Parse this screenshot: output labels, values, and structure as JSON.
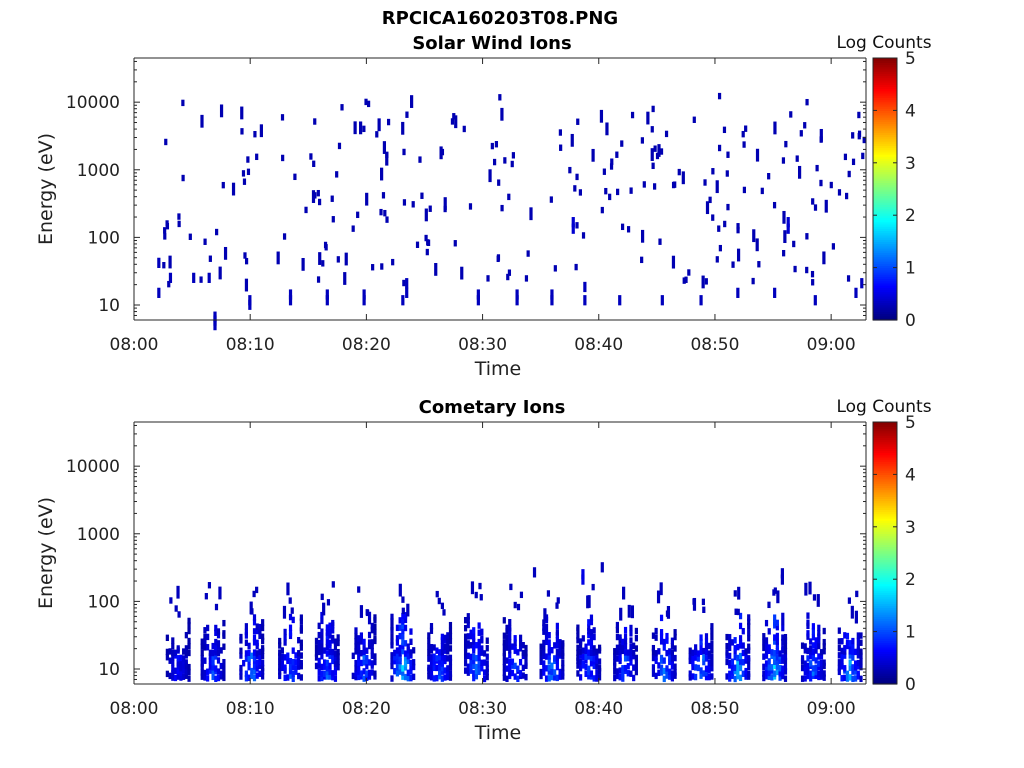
{
  "figure": {
    "title": "RPCICA160203T08.PNG"
  },
  "colormap": [
    "#00007f",
    "#0000ff",
    "#007fff",
    "#00ffff",
    "#7fff7f",
    "#ffff00",
    "#ff7f00",
    "#ff0000",
    "#7f0000"
  ],
  "chart_data": [
    {
      "type": "heatmap",
      "title": "Solar Wind Ions",
      "xlabel": "Time",
      "ylabel": "Energy (eV)",
      "xlim": [
        "08:00",
        "09:03"
      ],
      "ylim": [
        6,
        45000
      ],
      "yscale": "log",
      "x_ticks": [
        "08:00",
        "08:10",
        "08:20",
        "08:30",
        "08:40",
        "08:50",
        "09:00"
      ],
      "y_ticks": [
        10,
        100,
        1000,
        10000
      ],
      "y_ticklabels": [
        "10",
        "100",
        "1000",
        "10000"
      ],
      "colorbar": {
        "label": "Log Counts",
        "range": [
          0,
          5
        ],
        "ticks": [
          "0",
          "1",
          "2",
          "3",
          "4",
          "5"
        ]
      },
      "noise_points": 260,
      "cells": [
        {
          "t": "08:06:50",
          "e": 6,
          "c": 0.3
        },
        {
          "t": "08:06:50",
          "e": 7,
          "c": 0.3
        },
        {
          "t": "08:06:50",
          "e": 8,
          "c": 0.3
        },
        {
          "t": "08:03:00",
          "e": 30,
          "c": 0.3
        },
        {
          "t": "08:05:00",
          "e": 30,
          "c": 0.3
        },
        {
          "t": "08:06:20",
          "e": 30,
          "c": 0.3
        },
        {
          "t": "08:02:00",
          "e": 18,
          "c": 0.3
        },
        {
          "t": "08:02:00",
          "e": 50,
          "c": 0.3
        },
        {
          "t": "08:09:50",
          "e": 14,
          "c": 0.3
        },
        {
          "t": "08:09:50",
          "e": 12,
          "c": 0.3
        },
        {
          "t": "08:13:20",
          "e": 14,
          "c": 0.3
        },
        {
          "t": "08:13:20",
          "e": 17,
          "c": 0.3
        },
        {
          "t": "08:16:30",
          "e": 14,
          "c": 0.3
        },
        {
          "t": "08:16:30",
          "e": 17,
          "c": 0.3
        },
        {
          "t": "08:19:40",
          "e": 14,
          "c": 0.3
        },
        {
          "t": "08:19:40",
          "e": 17,
          "c": 0.3
        },
        {
          "t": "08:23:00",
          "e": 14,
          "c": 0.3
        },
        {
          "t": "08:23:20",
          "e": 18,
          "c": 0.3
        },
        {
          "t": "08:23:20",
          "e": 25,
          "c": 0.3
        },
        {
          "t": "08:29:30",
          "e": 14,
          "c": 0.3
        },
        {
          "t": "08:29:30",
          "e": 17,
          "c": 0.3
        },
        {
          "t": "08:32:50",
          "e": 14,
          "c": 0.3
        },
        {
          "t": "08:32:50",
          "e": 17,
          "c": 0.3
        },
        {
          "t": "08:35:50",
          "e": 14,
          "c": 0.3
        },
        {
          "t": "08:35:50",
          "e": 17,
          "c": 0.3
        },
        {
          "t": "08:38:40",
          "e": 14,
          "c": 0.3
        },
        {
          "t": "08:38:40",
          "e": 22,
          "c": 0.3
        },
        {
          "t": "08:41:40",
          "e": 14,
          "c": 0.3
        },
        {
          "t": "08:45:20",
          "e": 14,
          "c": 0.3
        },
        {
          "t": "08:48:40",
          "e": 14,
          "c": 0.3
        },
        {
          "t": "08:51:50",
          "e": 18,
          "c": 0.3
        },
        {
          "t": "08:55:00",
          "e": 18,
          "c": 0.3
        },
        {
          "t": "08:58:30",
          "e": 14,
          "c": 0.3
        },
        {
          "t": "09:02:00",
          "e": 18,
          "c": 0.3
        },
        {
          "t": "09:02:30",
          "e": 25,
          "c": 0.3
        },
        {
          "t": "08:37:40",
          "e": 160,
          "c": 0.4
        },
        {
          "t": "08:37:40",
          "e": 200,
          "c": 0.4
        },
        {
          "t": "08:56:10",
          "e": 160,
          "c": 0.4
        },
        {
          "t": "08:56:10",
          "e": 200,
          "c": 0.4
        }
      ]
    },
    {
      "type": "heatmap",
      "title": "Cometary Ions",
      "xlabel": "Time",
      "ylabel": "Energy (eV)",
      "xlim": [
        "08:00",
        "09:03"
      ],
      "ylim": [
        6,
        45000
      ],
      "yscale": "log",
      "x_ticks": [
        "08:00",
        "08:10",
        "08:20",
        "08:30",
        "08:40",
        "08:50",
        "09:00"
      ],
      "y_ticks": [
        10,
        100,
        1000,
        10000
      ],
      "y_ticklabels": [
        "10",
        "100",
        "1000",
        "10000"
      ],
      "colorbar": {
        "label": "Log Counts",
        "range": [
          0,
          5
        ],
        "ticks": [
          "0",
          "1",
          "2",
          "3",
          "4",
          "5"
        ]
      },
      "bursts": [
        {
          "t": "08:03:40",
          "peak": 0.6
        },
        {
          "t": "08:06:40",
          "peak": 0.9
        },
        {
          "t": "08:10:00",
          "peak": 1.2
        },
        {
          "t": "08:13:20",
          "peak": 1.0
        },
        {
          "t": "08:16:30",
          "peak": 1.1
        },
        {
          "t": "08:19:40",
          "peak": 1.0
        },
        {
          "t": "08:23:00",
          "peak": 1.6
        },
        {
          "t": "08:26:10",
          "peak": 1.0
        },
        {
          "t": "08:29:20",
          "peak": 1.2
        },
        {
          "t": "08:32:40",
          "peak": 0.9
        },
        {
          "t": "08:35:50",
          "peak": 1.2
        },
        {
          "t": "08:39:00",
          "peak": 1.0
        },
        {
          "t": "08:42:10",
          "peak": 0.9
        },
        {
          "t": "08:45:30",
          "peak": 1.2
        },
        {
          "t": "08:48:40",
          "peak": 1.3
        },
        {
          "t": "08:51:50",
          "peak": 1.5
        },
        {
          "t": "08:55:00",
          "peak": 1.6
        },
        {
          "t": "08:58:20",
          "peak": 1.1
        },
        {
          "t": "09:01:30",
          "peak": 1.4
        }
      ],
      "cells": [
        {
          "t": "08:38:30",
          "e": 250,
          "c": 0.5
        },
        {
          "t": "08:38:30",
          "e": 300,
          "c": 0.5
        },
        {
          "t": "08:40:10",
          "e": 380,
          "c": 0.3
        },
        {
          "t": "08:34:20",
          "e": 320,
          "c": 0.3
        },
        {
          "t": "08:55:40",
          "e": 250,
          "c": 0.3
        },
        {
          "t": "08:55:40",
          "e": 310,
          "c": 0.3
        }
      ]
    }
  ]
}
